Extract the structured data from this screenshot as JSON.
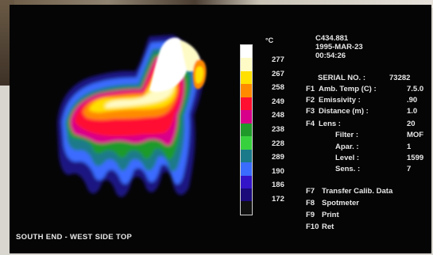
{
  "display": {
    "image_id": "C434.881",
    "date": "1995-MAR-23",
    "time": "00:54:26",
    "serial_label": "SERIAL NO. :",
    "serial_value": "73282",
    "unit": "°C",
    "caption": "SOUTH END - WEST SIDE TOP"
  },
  "scale": {
    "values": [
      "277",
      "267",
      "258",
      "249",
      "248",
      "238",
      "228",
      "289",
      "190",
      "186",
      "172"
    ],
    "colors": [
      "#ffffff",
      "#fffbc6",
      "#ffe000",
      "#ff8a00",
      "#ff1030",
      "#d8008a",
      "#1f9a2a",
      "#38d13e",
      "#1a7a8a",
      "#3a6cff",
      "#3314c8",
      "#1a0a7a",
      "#101010"
    ]
  },
  "parameters": [
    {
      "key": "F1",
      "label": "Amb. Temp (C) :",
      "value": "7.5.0"
    },
    {
      "key": "F2",
      "label": "Emissivity :",
      "value": ".90"
    },
    {
      "key": "F3",
      "label": "Distance  (m) :",
      "value": "1.0"
    },
    {
      "key": "F4",
      "label": "Lens :",
      "value": "20"
    },
    {
      "key": "",
      "label": "Filter :",
      "value": "MOF"
    },
    {
      "key": "",
      "label": "Apar. :",
      "value": "1"
    },
    {
      "key": "",
      "label": "Level :",
      "value": "1599"
    },
    {
      "key": "",
      "label": "Sens. :",
      "value": "7"
    }
  ],
  "functions": [
    {
      "key": "F7",
      "label": "Transfer Calib. Data"
    },
    {
      "key": "F8",
      "label": "Spotmeter"
    },
    {
      "key": "F9",
      "label": "Print"
    },
    {
      "key": "F10",
      "label": "Ret"
    }
  ]
}
